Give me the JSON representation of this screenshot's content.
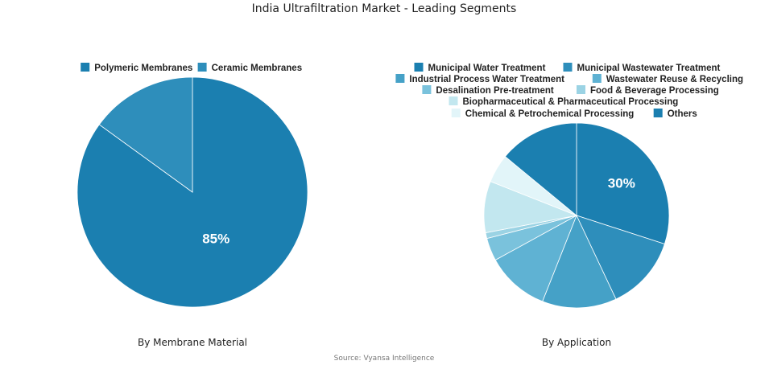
{
  "title": "India Ultrafiltration Market - Leading Segments",
  "source": "Source: Vyansa Intelligence",
  "chart_data": [
    {
      "type": "pie",
      "subtitle": "By Membrane Material",
      "legend": "top",
      "categories": [
        "Polymeric Membranes",
        "Ceramic Membranes"
      ],
      "values": [
        85,
        15
      ],
      "colors": [
        "#1b7fb0",
        "#2e8ebb"
      ],
      "data_labels": [
        "85%",
        ""
      ]
    },
    {
      "type": "pie",
      "subtitle": "By Application",
      "legend": "top",
      "categories": [
        "Municipal Water Treatment",
        "Municipal Wastewater Treatment",
        "Industrial Process Water Treatment",
        "Wastewater Reuse & Recycling",
        "Desalination Pre-treatment",
        "Food & Beverage Processing",
        "Biopharmaceutical & Pharmaceutical Processing",
        "Chemical & Petrochemical Processing",
        "Others"
      ],
      "values": [
        30,
        13,
        13,
        11,
        4,
        1,
        9,
        5,
        14
      ],
      "colors": [
        "#1b7fb0",
        "#2e8ebb",
        "#45a1c7",
        "#5fb2d3",
        "#7ac2dc",
        "#9bd3e4",
        "#c2e7ef",
        "#e2f5f9",
        "#1b7fb0"
      ],
      "data_labels": [
        "30%",
        "",
        "",
        "",
        "",
        "",
        "",
        "",
        ""
      ]
    }
  ]
}
